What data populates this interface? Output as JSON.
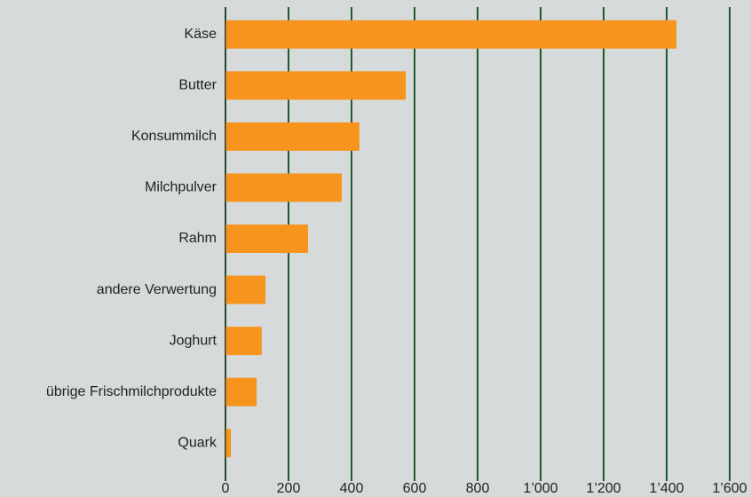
{
  "chart_data": {
    "type": "bar",
    "orientation": "horizontal",
    "categories": [
      "Käse",
      "Butter",
      "Konsummilch",
      "Milchpulver",
      "Rahm",
      "andere Verwertung",
      "Joghurt",
      "übrige Frischmilchprodukte",
      "Quark"
    ],
    "values": [
      1431,
      572,
      425,
      369,
      262,
      127,
      115,
      99,
      17
    ],
    "color": "#f7941d",
    "xlim": [
      0,
      1600
    ],
    "xticks": [
      0,
      200,
      400,
      600,
      800,
      {
        "value": 1000,
        "label": "1’000"
      },
      {
        "value": 1200,
        "label": "1’200"
      },
      {
        "value": 1400,
        "label": "1’400"
      },
      {
        "value": 1600,
        "label": "1’600"
      }
    ],
    "grid": true,
    "grid_color": "#1e5a2c"
  }
}
